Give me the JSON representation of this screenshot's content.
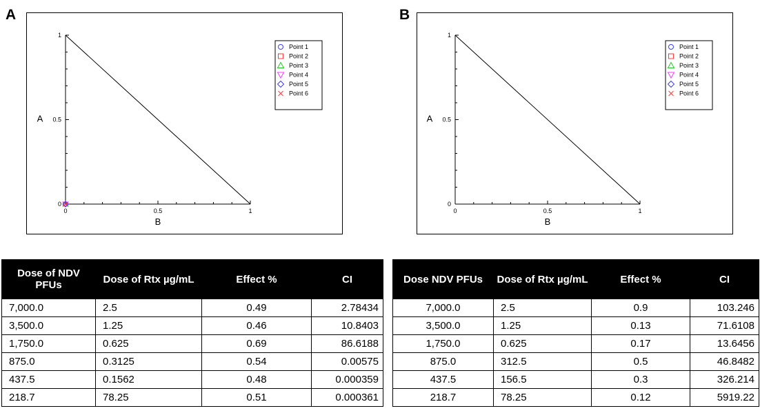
{
  "panels": [
    {
      "letter": "A",
      "chart": {
        "type": "scatter",
        "xlabel": "B",
        "ylabel": "A",
        "xticks": [
          "0",
          "0.5",
          "1"
        ],
        "yticks": [
          "0",
          "0.5",
          "1"
        ],
        "legend": [
          "Point 1",
          "Point 2",
          "Point 3",
          "Point 4",
          "Point 5",
          "Point 6"
        ],
        "legend_placement": "top-right"
      },
      "table": {
        "headers": [
          "Dose of NDV PFUs",
          "Dose of Rtx µg/mL",
          "Effect %",
          "CI"
        ],
        "rows": [
          [
            "7,000.0",
            "2.5",
            "0.49",
            "2.78434"
          ],
          [
            "3,500.0",
            "1.25",
            "0.46",
            "10.8403"
          ],
          [
            "1,750.0",
            "0.625",
            "0.69",
            "86.6188"
          ],
          [
            "875.0",
            "0.3125",
            "0.54",
            "0.00575"
          ],
          [
            "437.5",
            "0.1562",
            "0.48",
            "0.000359"
          ],
          [
            "218.7",
            "78.25",
            "0.51",
            "0.000361"
          ]
        ]
      }
    },
    {
      "letter": "B",
      "chart": {
        "type": "scatter",
        "xlabel": "B",
        "ylabel": "A",
        "xticks": [
          "0",
          "0.5",
          "1"
        ],
        "yticks": [
          "0",
          "0.5",
          "1"
        ],
        "legend": [
          "Point 1",
          "Point 2",
          "Point 3",
          "Point 4",
          "Point 5",
          "Point 6"
        ],
        "legend_placement": "top-right"
      },
      "table": {
        "headers": [
          "Dose NDV PFUs",
          "Dose of Rtx µg/mL",
          "Effect %",
          "CI"
        ],
        "rows": [
          [
            "7,000.0",
            "2.5",
            "0.9",
            "103.246"
          ],
          [
            "3,500.0",
            "1.25",
            "0.13",
            "71.6108"
          ],
          [
            "1,750.0",
            "0.625",
            "0.17",
            "13.6456"
          ],
          [
            "875.0",
            "312.5",
            "0.5",
            "46.8482"
          ],
          [
            "437.5",
            "156.5",
            "0.3",
            "326.214"
          ],
          [
            "218.7",
            "78.25",
            "0.12",
            "5919.22"
          ]
        ]
      }
    }
  ],
  "legend_colors": [
    "#3a3aff",
    "#ff3a3a",
    "#22cc22",
    "#ff33ff",
    "#3a3aff",
    "#ff3a3a"
  ],
  "legend_markers": [
    "circle",
    "square",
    "triangle-up",
    "triangle-down",
    "diamond",
    "x"
  ],
  "chart_data": [
    {
      "type": "scatter",
      "title": "",
      "xlabel": "B",
      "ylabel": "A",
      "xlim": [
        0,
        1
      ],
      "ylim": [
        0,
        1
      ],
      "grid": false,
      "legend": "top-right",
      "reference_line": {
        "x": [
          0,
          1
        ],
        "y": [
          1,
          0
        ]
      },
      "series": [
        {
          "name": "Point 1",
          "x": [
            0.0
          ],
          "y": [
            0.0
          ]
        },
        {
          "name": "Point 2",
          "x": [
            0.0
          ],
          "y": [
            0.0
          ]
        },
        {
          "name": "Point 3",
          "x": [
            0.0
          ],
          "y": [
            0.0
          ]
        },
        {
          "name": "Point 4",
          "x": [
            0.0
          ],
          "y": [
            0.0
          ]
        },
        {
          "name": "Point 5",
          "x": [
            0.0
          ],
          "y": [
            0.0
          ]
        },
        {
          "name": "Point 6",
          "x": [
            0.0
          ],
          "y": [
            0.0
          ]
        }
      ]
    },
    {
      "type": "scatter",
      "title": "",
      "xlabel": "B",
      "ylabel": "A",
      "xlim": [
        0,
        1
      ],
      "ylim": [
        0,
        1
      ],
      "grid": false,
      "legend": "top-right",
      "reference_line": {
        "x": [
          0,
          1
        ],
        "y": [
          1,
          0
        ]
      },
      "series": [
        {
          "name": "Point 1",
          "x": [],
          "y": []
        },
        {
          "name": "Point 2",
          "x": [],
          "y": []
        },
        {
          "name": "Point 3",
          "x": [],
          "y": []
        },
        {
          "name": "Point 4",
          "x": [],
          "y": []
        },
        {
          "name": "Point 5",
          "x": [],
          "y": []
        },
        {
          "name": "Point 6",
          "x": [],
          "y": []
        }
      ]
    }
  ]
}
